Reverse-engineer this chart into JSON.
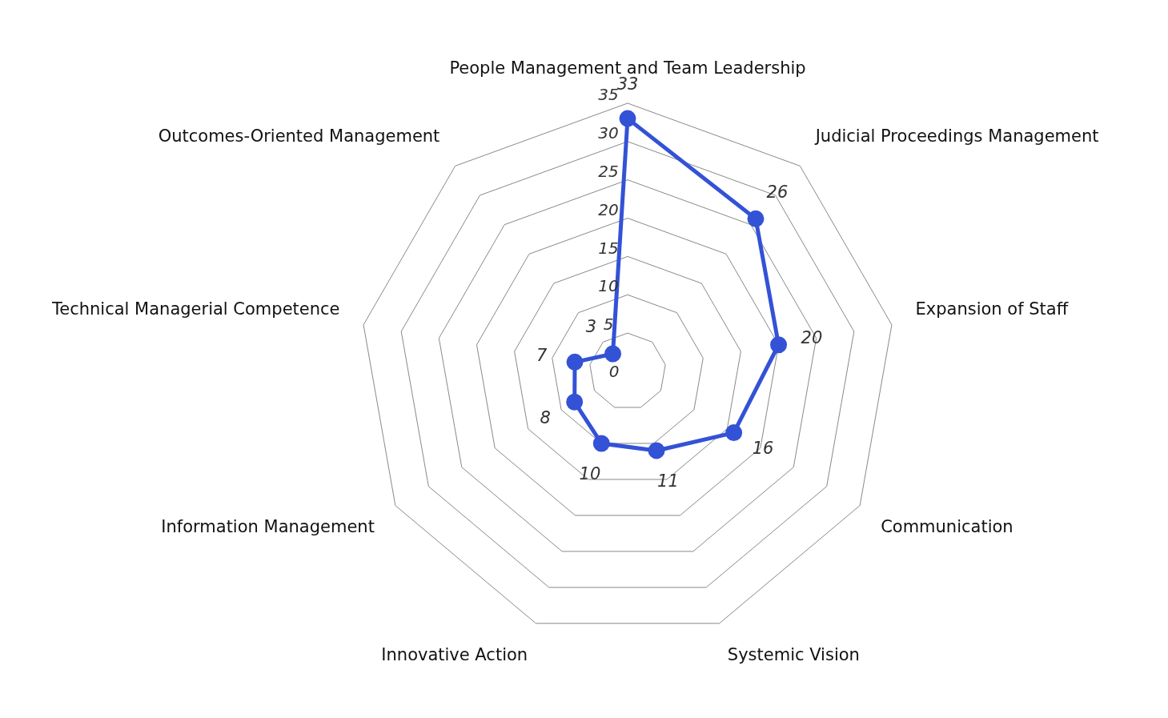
{
  "chart_data": {
    "type": "radar",
    "categories": [
      "People Management and Team Leadership",
      "Judicial Proceedings Management",
      "Expansion of Staff",
      "Communication",
      "Systemic Vision",
      "Innovative Action",
      "Information Management",
      "Technical Managerial Competence",
      "Outcomes-Oriented Management"
    ],
    "series": [
      {
        "color": "#3352d6",
        "values": [
          33,
          26,
          20,
          16,
          11,
          10,
          8,
          7,
          3
        ]
      }
    ],
    "ylim": [
      0,
      35
    ],
    "yticks": [
      0,
      5,
      10,
      15,
      20,
      25,
      30,
      35
    ],
    "grid": true,
    "legend": false,
    "marker": "circle",
    "line_style": "solid",
    "data_labels": true
  }
}
